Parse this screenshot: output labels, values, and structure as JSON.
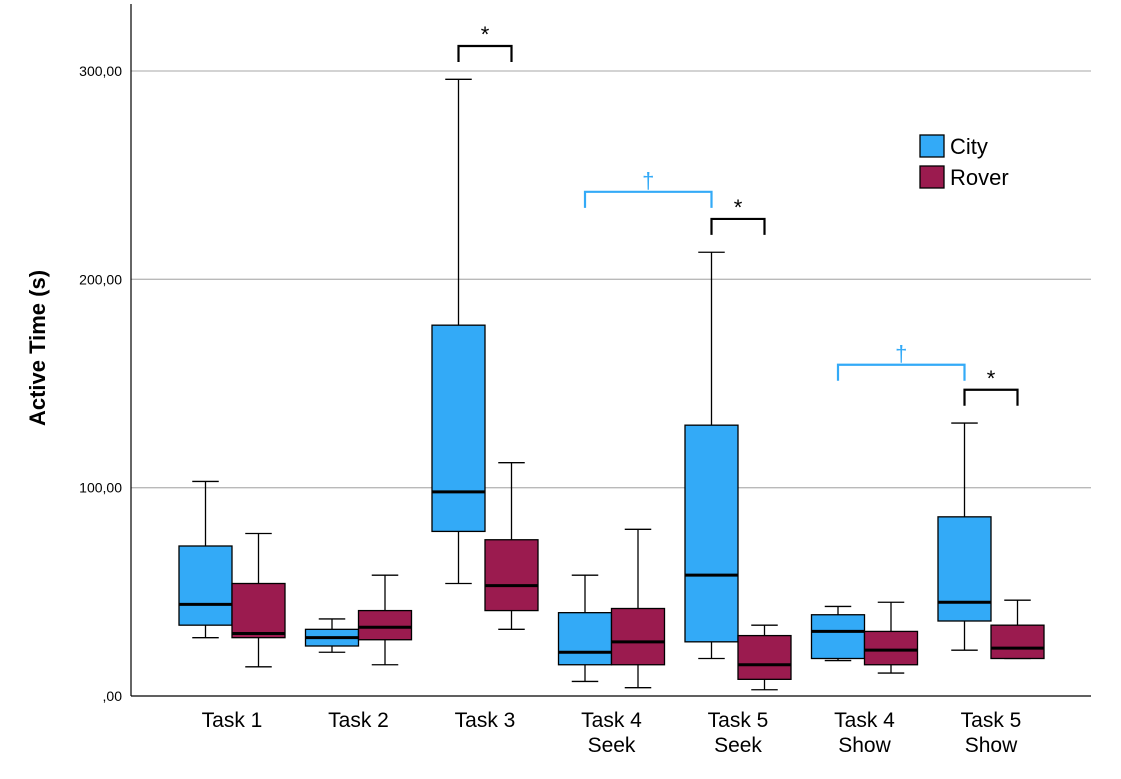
{
  "chart_data": {
    "type": "boxplot",
    "ylabel": "Active Time (s)",
    "ylim": [
      0,
      330
    ],
    "yticks": [
      {
        "value": 0,
        "label": ",00"
      },
      {
        "value": 100,
        "label": "100,00"
      },
      {
        "value": 200,
        "label": "200,00"
      },
      {
        "value": 300,
        "label": "300,00"
      }
    ],
    "grid": "horizontal",
    "legend_position": "top-right",
    "categories": [
      {
        "line1": "Task 1",
        "line2": ""
      },
      {
        "line1": "Task 2",
        "line2": ""
      },
      {
        "line1": "Task 3",
        "line2": ""
      },
      {
        "line1": "Task 4",
        "line2": "Seek"
      },
      {
        "line1": "Task 5",
        "line2": "Seek"
      },
      {
        "line1": "Task 4",
        "line2": "Show"
      },
      {
        "line1": "Task 5",
        "line2": "Show"
      }
    ],
    "series": [
      {
        "name": "City",
        "color": "#33AAF7",
        "boxes": [
          {
            "whislo": 28,
            "q1": 34,
            "med": 44,
            "q3": 72,
            "whishi": 103
          },
          {
            "whislo": 21,
            "q1": 24,
            "med": 28,
            "q3": 32,
            "whishi": 37
          },
          {
            "whislo": 54,
            "q1": 79,
            "med": 98,
            "q3": 178,
            "whishi": 296
          },
          {
            "whislo": 7,
            "q1": 15,
            "med": 21,
            "q3": 40,
            "whishi": 58
          },
          {
            "whislo": 18,
            "q1": 26,
            "med": 58,
            "q3": 130,
            "whishi": 213
          },
          {
            "whislo": 17,
            "q1": 18,
            "med": 31,
            "q3": 39,
            "whishi": 43
          },
          {
            "whislo": 22,
            "q1": 36,
            "med": 45,
            "q3": 86,
            "whishi": 131
          }
        ]
      },
      {
        "name": "Rover",
        "color": "#9B1B4F",
        "boxes": [
          {
            "whislo": 14,
            "q1": 28,
            "med": 30,
            "q3": 54,
            "whishi": 78
          },
          {
            "whislo": 15,
            "q1": 27,
            "med": 33,
            "q3": 41,
            "whishi": 58
          },
          {
            "whislo": 32,
            "q1": 41,
            "med": 53,
            "q3": 75,
            "whishi": 112
          },
          {
            "whislo": 4,
            "q1": 15,
            "med": 26,
            "q3": 42,
            "whishi": 80
          },
          {
            "whislo": 3,
            "q1": 8,
            "med": 15,
            "q3": 29,
            "whishi": 34
          },
          {
            "whislo": 11,
            "q1": 15,
            "med": 22,
            "q3": 31,
            "whishi": 45
          },
          {
            "whislo": 18,
            "q1": 18,
            "med": 23,
            "q3": 34,
            "whishi": 46
          }
        ]
      }
    ],
    "annotations": [
      {
        "label": "*",
        "color": "#000000",
        "from": {
          "cat": 2,
          "series": 0
        },
        "to": {
          "cat": 2,
          "series": 1
        },
        "y": 312
      },
      {
        "label": "*",
        "color": "#000000",
        "from": {
          "cat": 4,
          "series": 0
        },
        "to": {
          "cat": 4,
          "series": 1
        },
        "y": 229
      },
      {
        "label": "*",
        "color": "#000000",
        "from": {
          "cat": 6,
          "series": 0
        },
        "to": {
          "cat": 6,
          "series": 1
        },
        "y": 147
      },
      {
        "label": "†",
        "color": "#33AAF7",
        "from": {
          "cat": 3,
          "series": 0
        },
        "to": {
          "cat": 4,
          "series": 0
        },
        "y": 242
      },
      {
        "label": "†",
        "color": "#33AAF7",
        "from": {
          "cat": 5,
          "series": 0
        },
        "to": {
          "cat": 6,
          "series": 0
        },
        "y": 159
      }
    ]
  }
}
